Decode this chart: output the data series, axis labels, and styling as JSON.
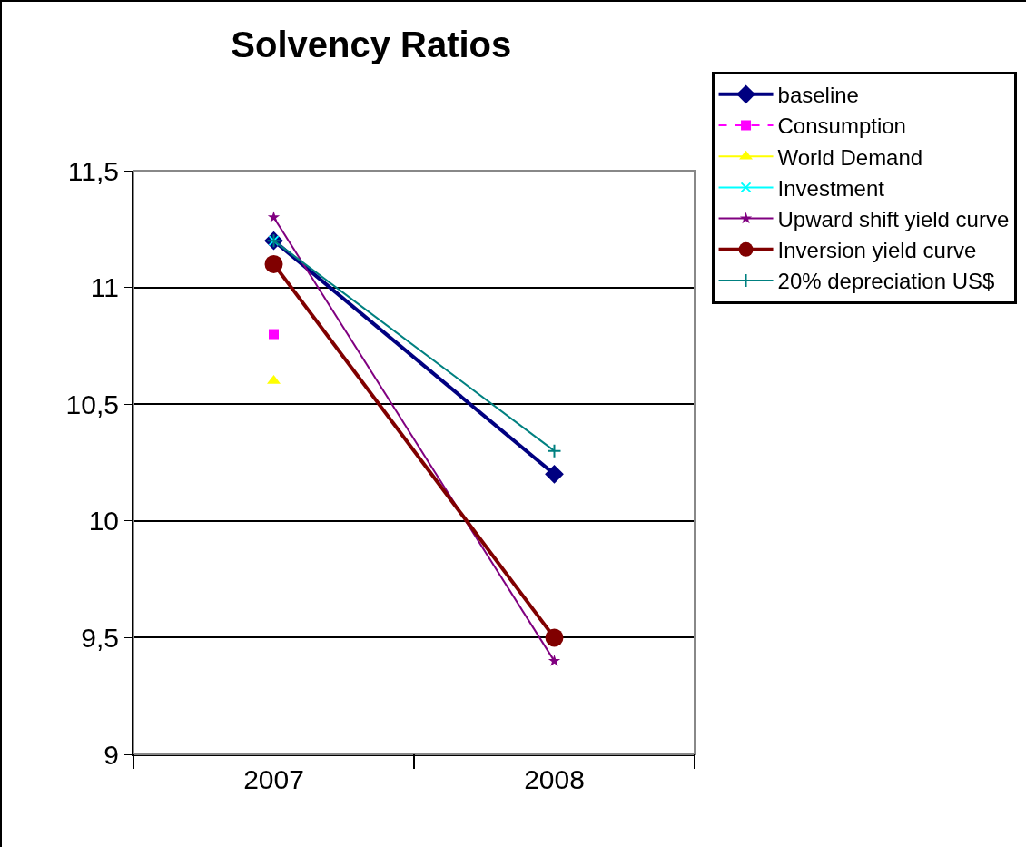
{
  "chart_data": {
    "type": "line",
    "title": "Solvency Ratios",
    "categories": [
      "2007",
      "2008"
    ],
    "ylim": [
      9,
      11.5
    ],
    "yticks": [
      9,
      {
        "value": 9.5,
        "label": "9,5"
      },
      10,
      {
        "value": 10.5,
        "label": "10,5"
      },
      11,
      {
        "value": 11.5,
        "label": "11,5"
      }
    ],
    "grid": "y",
    "legend": "right",
    "series": [
      {
        "name": "baseline",
        "color": "#000080",
        "marker": "diamond",
        "values": [
          11.2,
          10.2
        ]
      },
      {
        "name": "Consumption",
        "color": "#ff00ff",
        "marker": "square",
        "line_style": "dashed",
        "values": [
          10.8,
          null
        ]
      },
      {
        "name": "World Demand",
        "color": "#ffff00",
        "marker": "triangle",
        "values": [
          10.6,
          null
        ]
      },
      {
        "name": "Investment",
        "color": "#00ffff",
        "marker": "cross",
        "values": [
          11.2,
          null
        ]
      },
      {
        "name": "Upward shift yield curve",
        "color": "#800080",
        "marker": "star",
        "values": [
          11.3,
          9.4
        ]
      },
      {
        "name": "Inversion yield curve",
        "color": "#800000",
        "marker": "circle",
        "values": [
          11.1,
          9.5
        ]
      },
      {
        "name": "20% depreciation US$",
        "color": "#008080",
        "marker": "plus",
        "values": [
          11.2,
          10.3
        ]
      }
    ]
  }
}
